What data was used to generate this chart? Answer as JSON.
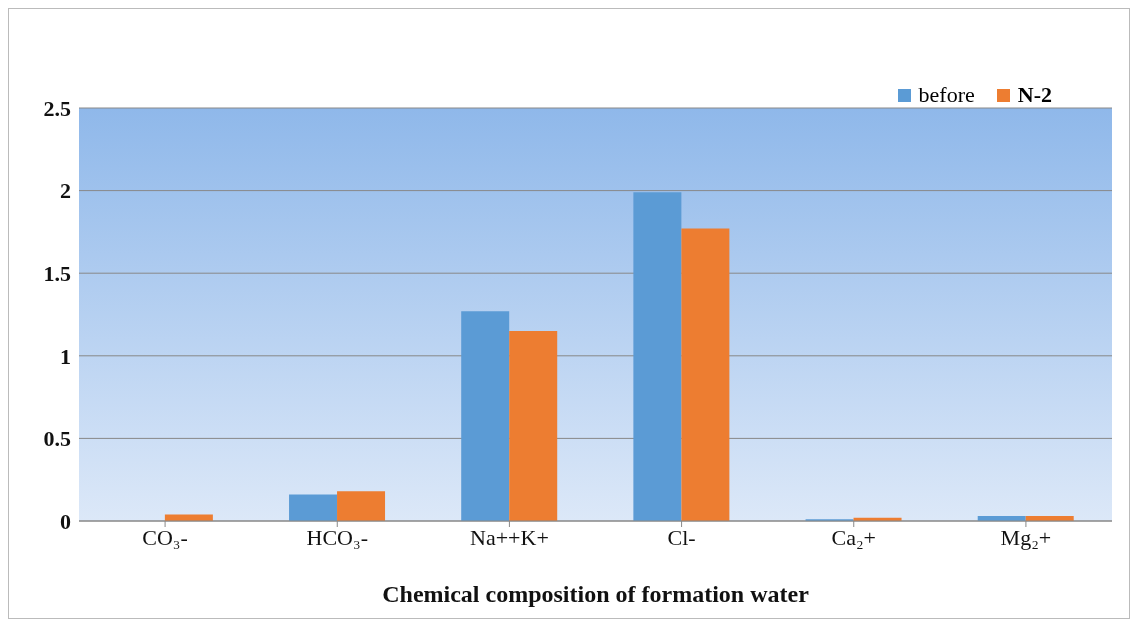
{
  "chart_data": {
    "type": "bar",
    "xlabel": "Chemical composition of formation water",
    "categories": [
      "CO₃-",
      "HCO₃-",
      "Na++K+",
      "Cl-",
      "Ca₂+",
      "Mg₂+"
    ],
    "series": [
      {
        "name": "before",
        "color": "#5b9bd5",
        "values": [
          0,
          0.16,
          1.27,
          1.99,
          0.01,
          0.03
        ]
      },
      {
        "name": "N-2",
        "color": "#ed7d31",
        "values": [
          0.04,
          0.18,
          1.15,
          1.77,
          0.02,
          0.03
        ]
      }
    ],
    "ylim": [
      0,
      2.5
    ],
    "yticks": [
      0,
      0.5,
      1,
      1.5,
      2,
      2.5
    ],
    "grid": "y",
    "legend": "top right"
  }
}
